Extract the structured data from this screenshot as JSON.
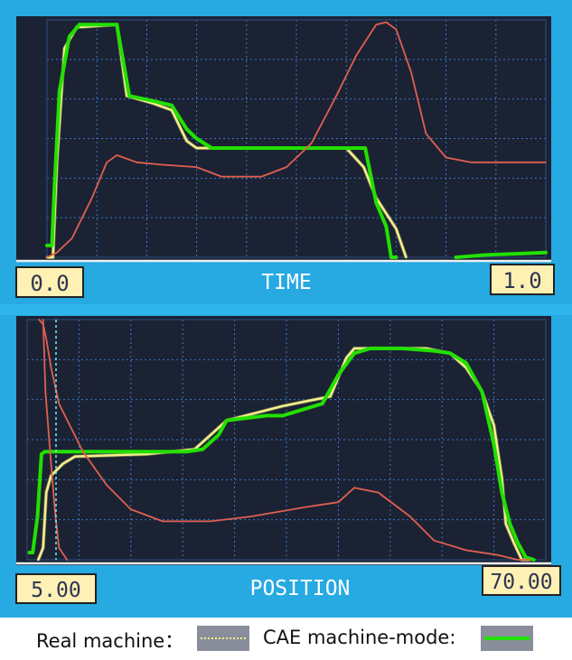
{
  "chart_data": [
    {
      "type": "line",
      "xlabel": "TIME",
      "x_start_label": "0.0",
      "x_end_label": "1.0",
      "grid": true,
      "ylim": [
        0,
        100
      ],
      "xlim": [
        0,
        1.0
      ],
      "series": [
        {
          "name": "Real machine",
          "color": "#f4f08a",
          "x": [
            0.0,
            0.012,
            0.02,
            0.035,
            0.06,
            0.07,
            0.14,
            0.16,
            0.21,
            0.25,
            0.28,
            0.3,
            0.31,
            0.34,
            0.42,
            0.5,
            0.56,
            0.6,
            0.635,
            0.66,
            0.7,
            0.72
          ],
          "y": [
            0,
            0,
            40,
            88,
            97,
            97,
            98,
            68,
            65,
            62,
            49,
            46,
            46,
            46,
            46,
            46,
            46,
            46,
            38,
            25,
            12,
            0
          ]
        },
        {
          "name": "CAE machine-mode",
          "color": "#22e000",
          "x": [
            0.0,
            0.01,
            0.015,
            0.025,
            0.045,
            0.065,
            0.14,
            0.165,
            0.21,
            0.25,
            0.28,
            0.3,
            0.33,
            0.4,
            0.5,
            0.6,
            0.638,
            0.66,
            0.68,
            0.69,
            0.7
          ],
          "y": [
            5,
            5,
            30,
            70,
            93,
            98,
            98,
            68,
            66,
            64,
            54,
            50,
            46,
            46,
            46,
            46,
            46,
            23,
            13,
            0,
            0
          ]
        },
        {
          "color": "#e06050",
          "x": [
            0.0,
            0.02,
            0.05,
            0.09,
            0.12,
            0.14,
            0.18,
            0.23,
            0.3,
            0.35,
            0.43,
            0.48,
            0.53,
            0.58,
            0.62,
            0.66,
            0.68,
            0.7,
            0.73,
            0.76,
            0.8,
            0.85,
            0.9,
            1.0
          ],
          "y": [
            0,
            2,
            8,
            25,
            40,
            43,
            40,
            39,
            38,
            34,
            34,
            38,
            48,
            68,
            85,
            98,
            99,
            96,
            78,
            52,
            42,
            40,
            40,
            40
          ]
        },
        {
          "color": "#22e000",
          "x": [
            0.82,
            0.88,
            1.0
          ],
          "y": [
            0,
            1,
            2
          ]
        }
      ]
    },
    {
      "type": "line",
      "xlabel": "POSITION",
      "x_start_label": "5.00",
      "x_end_label": "70.00",
      "grid": true,
      "ylim": [
        0,
        100
      ],
      "xlim": [
        5.0,
        70.0
      ],
      "series": [
        {
          "name": "Real machine",
          "color": "#f4f08a",
          "x": [
            6.4,
            7.0,
            7.4,
            8.0,
            9.5,
            11.0,
            20.0,
            26.0,
            28.0,
            30.0,
            37.0,
            40.0,
            43.0,
            45.0,
            46.0,
            50.0,
            55.0,
            58.0,
            60.0,
            62.0,
            63.5,
            64.5,
            65.0,
            66.0,
            67.0,
            68.0
          ],
          "y": [
            0,
            5,
            28,
            35,
            40,
            43,
            44,
            46,
            52,
            58,
            64,
            66,
            68,
            84,
            88,
            88,
            88,
            86,
            80,
            70,
            56,
            34,
            15,
            7,
            0,
            0
          ]
        },
        {
          "name": "CAE machine-mode",
          "color": "#22e000",
          "x": [
            5.3,
            5.7,
            6.3,
            6.8,
            7.2,
            20.0,
            25.0,
            27.0,
            29.0,
            30.0,
            35.0,
            37.0,
            42.0,
            44.0,
            46.0,
            48.0,
            52.0,
            56.0,
            58.0,
            60.0,
            62.0,
            63.5,
            64.5,
            65.5,
            66.5,
            67.5,
            68.5
          ],
          "y": [
            3,
            3,
            18,
            44,
            45,
            45,
            45,
            46,
            52,
            58,
            60,
            60,
            65,
            77,
            86,
            88,
            88,
            87,
            86,
            82,
            70,
            48,
            28,
            15,
            7,
            1,
            0
          ]
        },
        {
          "color": "#e06050",
          "x": [
            6.5,
            7.0,
            7.4,
            8.0,
            9.0,
            12.0,
            15.0,
            18.0,
            22.0,
            28.0,
            33.0,
            40.0,
            44.0,
            46.0,
            49.0,
            53.0,
            56.0,
            60.0,
            64.0,
            66.5,
            68.0
          ],
          "y": [
            100,
            98,
            92,
            80,
            65,
            45,
            31,
            21,
            16,
            16,
            18,
            22,
            24,
            30,
            28,
            18,
            8,
            4,
            2,
            0,
            0
          ]
        },
        {
          "color": "#e06050",
          "x": [
            7.0,
            7.3,
            8.0,
            8.5,
            9.0,
            10.0
          ],
          "y": [
            100,
            70,
            40,
            20,
            5,
            0
          ]
        }
      ]
    }
  ],
  "legend": {
    "real_label": "Real machine：",
    "cae_label": "CAE machine-mode:"
  },
  "colors": {
    "monitor_frame": "#27a9e1",
    "screen": "#1b2233",
    "grid": "#3a78c8",
    "label_box": "#fff0b4",
    "label_text": "#2d3552",
    "real": "#f4f08a",
    "cae": "#22e000",
    "red": "#e06050"
  }
}
